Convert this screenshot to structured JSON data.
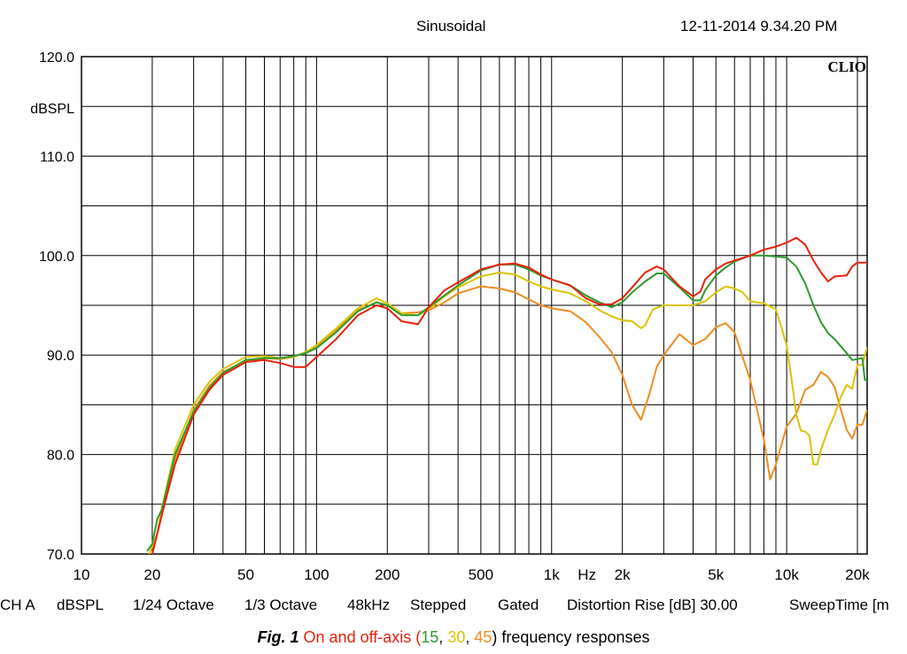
{
  "header": {
    "mode": "Sinusoidal",
    "datetime": "12-11-2014 9.34.20 PM"
  },
  "logo": "CLIO",
  "footer": {
    "items": [
      "CH A",
      "dBSPL",
      "1/24 Octave",
      "1/3 Octave",
      "48kHz",
      "Stepped",
      "Gated",
      "Distortion Rise [dB] 30.00",
      "SweepTime [m"
    ]
  },
  "caption": {
    "fig": "Fig. 1",
    "before": "On and off-axis (",
    "s15": "15",
    "sep1": ", ",
    "s30": "30",
    "sep2": ", ",
    "s45": "45",
    "after": ") frequency responses"
  },
  "chart_data": {
    "type": "line",
    "xscale": "log",
    "xlim": [
      10,
      22000
    ],
    "ylim": [
      70,
      120
    ],
    "ylabel": "dBSPL",
    "grid": true,
    "xticks": [
      {
        "value": 10,
        "label": "10"
      },
      {
        "value": 20,
        "label": "20"
      },
      {
        "value": 50,
        "label": "50"
      },
      {
        "value": 100,
        "label": "100"
      },
      {
        "value": 200,
        "label": "200"
      },
      {
        "value": 500,
        "label": "500"
      },
      {
        "value": 1000,
        "label": "1k"
      },
      {
        "value": 2000,
        "label": "2k"
      },
      {
        "value": 5000,
        "label": "5k"
      },
      {
        "value": 10000,
        "label": "10k"
      },
      {
        "value": 20000,
        "label": "20k"
      }
    ],
    "xunit": "Hz",
    "yticks": [
      {
        "value": 120,
        "label": "120.0"
      },
      {
        "value": 110,
        "label": "110.0"
      },
      {
        "value": 100,
        "label": "100.0"
      },
      {
        "value": 90,
        "label": "90.0"
      },
      {
        "value": 80,
        "label": "80.0"
      },
      {
        "value": 70,
        "label": "70.0"
      }
    ],
    "series": [
      {
        "color": "#e8200a",
        "points": [
          [
            20,
            70
          ],
          [
            22,
            74
          ],
          [
            25,
            79
          ],
          [
            30,
            84
          ],
          [
            35,
            86.5
          ],
          [
            40,
            88
          ],
          [
            50,
            89.3
          ],
          [
            60,
            89.5
          ],
          [
            70,
            89.2
          ],
          [
            80,
            88.8
          ],
          [
            90,
            88.8
          ],
          [
            100,
            89.8
          ],
          [
            120,
            91.5
          ],
          [
            150,
            94
          ],
          [
            180,
            95
          ],
          [
            200,
            94.7
          ],
          [
            230,
            93.4
          ],
          [
            270,
            93.1
          ],
          [
            300,
            94.8
          ],
          [
            350,
            96.5
          ],
          [
            400,
            97.3
          ],
          [
            500,
            98.6
          ],
          [
            600,
            99.1
          ],
          [
            700,
            99.2
          ],
          [
            800,
            98.8
          ],
          [
            900,
            98.1
          ],
          [
            1000,
            97.6
          ],
          [
            1200,
            97
          ],
          [
            1400,
            95.7
          ],
          [
            1600,
            95.1
          ],
          [
            1800,
            95.1
          ],
          [
            2000,
            95.7
          ],
          [
            2200,
            96.8
          ],
          [
            2500,
            98.3
          ],
          [
            2800,
            98.9
          ],
          [
            3000,
            98.6
          ],
          [
            3500,
            96.9
          ],
          [
            4000,
            95.9
          ],
          [
            4300,
            96.4
          ],
          [
            4500,
            97.6
          ],
          [
            5000,
            98.6
          ],
          [
            5500,
            99.2
          ],
          [
            6000,
            99.5
          ],
          [
            7000,
            100
          ],
          [
            8000,
            100.6
          ],
          [
            9000,
            100.9
          ],
          [
            10000,
            101.3
          ],
          [
            11000,
            101.8
          ],
          [
            12000,
            101.1
          ],
          [
            13000,
            99.5
          ],
          [
            14000,
            98.3
          ],
          [
            15000,
            97.4
          ],
          [
            16000,
            97.9
          ],
          [
            18000,
            98
          ],
          [
            19000,
            98.9
          ],
          [
            20000,
            99.3
          ],
          [
            22000,
            99.3
          ]
        ]
      },
      {
        "color": "#2e9a2e",
        "points": [
          [
            19,
            70.3
          ],
          [
            20,
            71
          ],
          [
            21,
            73.5
          ],
          [
            22,
            74.5
          ],
          [
            25,
            80
          ],
          [
            30,
            84.3
          ],
          [
            35,
            86.7
          ],
          [
            40,
            88.2
          ],
          [
            50,
            89.5
          ],
          [
            60,
            89.7
          ],
          [
            70,
            89.7
          ],
          [
            80,
            89.9
          ],
          [
            90,
            90.2
          ],
          [
            100,
            90.7
          ],
          [
            120,
            92.2
          ],
          [
            150,
            94.4
          ],
          [
            180,
            95.3
          ],
          [
            200,
            95
          ],
          [
            230,
            94
          ],
          [
            270,
            94
          ],
          [
            300,
            94.8
          ],
          [
            350,
            96
          ],
          [
            400,
            97
          ],
          [
            500,
            98.5
          ],
          [
            600,
            99.1
          ],
          [
            700,
            99.1
          ],
          [
            800,
            98.6
          ],
          [
            900,
            98
          ],
          [
            1000,
            97.6
          ],
          [
            1200,
            97
          ],
          [
            1400,
            96
          ],
          [
            1600,
            95.3
          ],
          [
            1800,
            94.8
          ],
          [
            2000,
            95.3
          ],
          [
            2200,
            96.3
          ],
          [
            2500,
            97.4
          ],
          [
            2800,
            98.2
          ],
          [
            3000,
            98.2
          ],
          [
            3500,
            96.8
          ],
          [
            4000,
            95.5
          ],
          [
            4300,
            95.5
          ],
          [
            4500,
            96.5
          ],
          [
            5000,
            98
          ],
          [
            5500,
            98.8
          ],
          [
            6000,
            99.4
          ],
          [
            7000,
            100
          ],
          [
            8000,
            100
          ],
          [
            9000,
            99.9
          ],
          [
            10000,
            99.8
          ],
          [
            11000,
            98.9
          ],
          [
            12000,
            97.2
          ],
          [
            13000,
            95
          ],
          [
            14000,
            93.3
          ],
          [
            15000,
            92.2
          ],
          [
            16000,
            91.6
          ],
          [
            18000,
            90.2
          ],
          [
            19000,
            89.5
          ],
          [
            20000,
            89.6
          ],
          [
            21000,
            89.7
          ],
          [
            21500,
            87.5
          ],
          [
            22000,
            87.5
          ]
        ]
      },
      {
        "color": "#d9c400",
        "points": [
          [
            19,
            69.5
          ],
          [
            21,
            72
          ],
          [
            22,
            74.7
          ],
          [
            25,
            80.5
          ],
          [
            30,
            85
          ],
          [
            35,
            87.3
          ],
          [
            40,
            88.6
          ],
          [
            50,
            89.8
          ],
          [
            60,
            89.9
          ],
          [
            70,
            89.7
          ],
          [
            80,
            89.8
          ],
          [
            90,
            90.3
          ],
          [
            100,
            91
          ],
          [
            120,
            92.6
          ],
          [
            150,
            94.7
          ],
          [
            180,
            95.7
          ],
          [
            200,
            95.2
          ],
          [
            230,
            94.2
          ],
          [
            270,
            94
          ],
          [
            300,
            94.6
          ],
          [
            350,
            95.9
          ],
          [
            400,
            96.8
          ],
          [
            500,
            97.9
          ],
          [
            600,
            98.3
          ],
          [
            700,
            98.1
          ],
          [
            800,
            97.4
          ],
          [
            900,
            96.9
          ],
          [
            1000,
            96.6
          ],
          [
            1200,
            96.2
          ],
          [
            1400,
            95.4
          ],
          [
            1600,
            94.5
          ],
          [
            1800,
            93.9
          ],
          [
            2000,
            93.5
          ],
          [
            2200,
            93.4
          ],
          [
            2400,
            92.7
          ],
          [
            2500,
            93
          ],
          [
            2700,
            94.6
          ],
          [
            3000,
            95
          ],
          [
            3500,
            95
          ],
          [
            4000,
            95
          ],
          [
            4500,
            95.4
          ],
          [
            5000,
            96.3
          ],
          [
            5500,
            96.9
          ],
          [
            6000,
            96.7
          ],
          [
            6500,
            96.3
          ],
          [
            7000,
            95.4
          ],
          [
            8000,
            95.2
          ],
          [
            9000,
            94.6
          ],
          [
            10000,
            91
          ],
          [
            10500,
            87.5
          ],
          [
            11000,
            84
          ],
          [
            11500,
            82.4
          ],
          [
            12000,
            82.3
          ],
          [
            12500,
            81.9
          ],
          [
            13000,
            79
          ],
          [
            13500,
            79
          ],
          [
            14000,
            80.5
          ],
          [
            15000,
            82.5
          ],
          [
            16000,
            84
          ],
          [
            17000,
            85.8
          ],
          [
            18000,
            87
          ],
          [
            19000,
            86.6
          ],
          [
            20000,
            89
          ],
          [
            21000,
            89
          ],
          [
            22000,
            90.8
          ]
        ]
      },
      {
        "color": "#f08c20",
        "points": [
          [
            20,
            70
          ],
          [
            22,
            74
          ],
          [
            25,
            79.5
          ],
          [
            30,
            84.5
          ],
          [
            35,
            86.9
          ],
          [
            40,
            88.3
          ],
          [
            50,
            89.4
          ],
          [
            60,
            89.7
          ],
          [
            70,
            89.6
          ],
          [
            80,
            89.8
          ],
          [
            90,
            90.3
          ],
          [
            100,
            90.8
          ],
          [
            120,
            92.4
          ],
          [
            150,
            94.5
          ],
          [
            180,
            95.3
          ],
          [
            200,
            95
          ],
          [
            230,
            94.2
          ],
          [
            270,
            94.3
          ],
          [
            300,
            94.5
          ],
          [
            350,
            95.3
          ],
          [
            400,
            96.2
          ],
          [
            500,
            96.9
          ],
          [
            600,
            96.7
          ],
          [
            700,
            96.3
          ],
          [
            800,
            95.6
          ],
          [
            900,
            95
          ],
          [
            1000,
            94.7
          ],
          [
            1200,
            94.4
          ],
          [
            1400,
            93.3
          ],
          [
            1600,
            91.8
          ],
          [
            1800,
            90.3
          ],
          [
            2000,
            88
          ],
          [
            2200,
            85
          ],
          [
            2400,
            83.5
          ],
          [
            2600,
            86
          ],
          [
            2800,
            88.8
          ],
          [
            3000,
            90
          ],
          [
            3500,
            92.1
          ],
          [
            4000,
            91
          ],
          [
            4500,
            91.6
          ],
          [
            5000,
            92.8
          ],
          [
            5500,
            93.2
          ],
          [
            6000,
            92.3
          ],
          [
            7000,
            87.5
          ],
          [
            8000,
            81.5
          ],
          [
            8500,
            77.5
          ],
          [
            9000,
            79
          ],
          [
            10000,
            82.8
          ],
          [
            11000,
            84.1
          ],
          [
            12000,
            86.5
          ],
          [
            13000,
            87
          ],
          [
            14000,
            88.3
          ],
          [
            15000,
            87.8
          ],
          [
            16000,
            86.8
          ],
          [
            17000,
            84.5
          ],
          [
            18000,
            82.5
          ],
          [
            19000,
            81.6
          ],
          [
            20000,
            83
          ],
          [
            21000,
            83
          ],
          [
            22000,
            84.5
          ]
        ]
      }
    ]
  }
}
